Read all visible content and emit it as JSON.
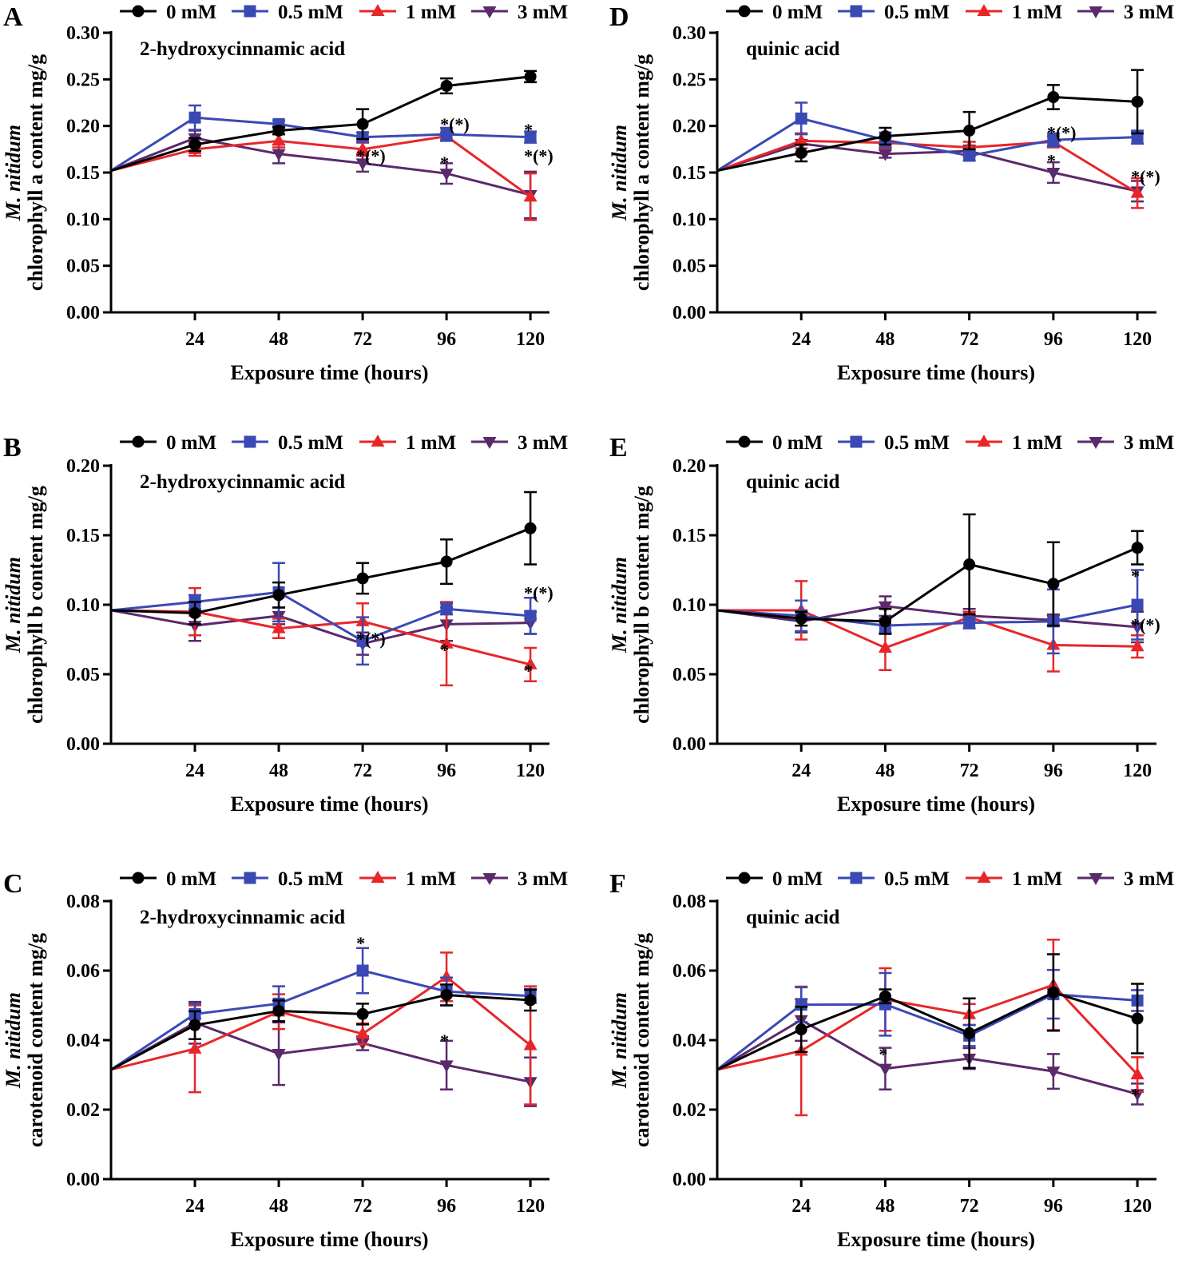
{
  "legend_labels": [
    "0 mM",
    "0.5 mM",
    "1 mM",
    "3 mM"
  ],
  "series_colors": [
    "#000000",
    "#3a49b4",
    "#e8262a",
    "#5b2a6b"
  ],
  "series_markers": [
    "circle",
    "square",
    "triangle-up",
    "triangle-down"
  ],
  "chart_data": [
    {
      "panel": "A",
      "type": "line",
      "title": "2-hydroxycinnamic acid",
      "ylabel_species": "M. nitidum",
      "ylabel": "chlorophyll a content mg/g",
      "xlabel": "Exposure time (hours)",
      "x": [
        0,
        24,
        48,
        72,
        96,
        120
      ],
      "xticks": [
        "24",
        "48",
        "72",
        "96",
        "120"
      ],
      "ylim": [
        0,
        0.3
      ],
      "yticks": [
        "0.00",
        "0.05",
        "0.10",
        "0.15",
        "0.20",
        "0.25",
        "0.30"
      ],
      "series": [
        {
          "name": "0 mM",
          "values": [
            0.152,
            0.18,
            0.195,
            0.202,
            0.243,
            0.253
          ],
          "err": [
            0,
            0.007,
            0.004,
            0.016,
            0.008,
            0.006
          ]
        },
        {
          "name": "0.5 mM",
          "values": [
            0.152,
            0.209,
            0.202,
            0.188,
            0.191,
            0.188
          ],
          "err": [
            0,
            0.013,
            0.004,
            0.005,
            0.007,
            0.006
          ]
        },
        {
          "name": "1 mM",
          "values": [
            0.152,
            0.175,
            0.184,
            0.175,
            0.189,
            0.124
          ],
          "err": [
            0,
            0.007,
            0.007,
            0.007,
            0.004,
            0.025
          ]
        },
        {
          "name": "3 mM",
          "values": [
            0.152,
            0.187,
            0.17,
            0.16,
            0.149,
            0.126
          ],
          "err": [
            0,
            0.008,
            0.01,
            0.009,
            0.011,
            0.025
          ]
        }
      ],
      "annotations": [
        {
          "text": "*(*)",
          "x": 96,
          "y": 0.204
        },
        {
          "text": "*",
          "x": 120,
          "y": 0.198
        },
        {
          "text": "*(*)",
          "x": 72,
          "y": 0.17
        },
        {
          "text": "*",
          "x": 96,
          "y": 0.163
        },
        {
          "text": "*(*)",
          "x": 120,
          "y": 0.17
        }
      ]
    },
    {
      "panel": "B",
      "type": "line",
      "title": "2-hydroxycinnamic acid",
      "ylabel_species": "M. nitidum",
      "ylabel": "chlorophyll b content mg/g",
      "xlabel": "Exposure time (hours)",
      "x": [
        0,
        24,
        48,
        72,
        96,
        120
      ],
      "xticks": [
        "24",
        "48",
        "72",
        "96",
        "120"
      ],
      "ylim": [
        0,
        0.2
      ],
      "yticks": [
        "0.00",
        "0.05",
        "0.10",
        "0.15",
        "0.20"
      ],
      "series": [
        {
          "name": "0 mM",
          "values": [
            0.096,
            0.094,
            0.107,
            0.119,
            0.131,
            0.155
          ],
          "err": [
            0,
            0.008,
            0.009,
            0.011,
            0.016,
            0.026
          ]
        },
        {
          "name": "0.5 mM",
          "values": [
            0.096,
            0.102,
            0.109,
            0.074,
            0.097,
            0.092
          ],
          "err": [
            0,
            0.005,
            0.021,
            0.017,
            0.004,
            0.013
          ]
        },
        {
          "name": "1 mM",
          "values": [
            0.096,
            0.095,
            0.083,
            0.088,
            0.072,
            0.057
          ],
          "err": [
            0,
            0.017,
            0.007,
            0.013,
            0.03,
            0.012
          ]
        },
        {
          "name": "3 mM",
          "values": [
            0.096,
            0.085,
            0.092,
            0.072,
            0.086,
            0.087
          ],
          "err": [
            0,
            0.011,
            0.006,
            0.008,
            0.012,
            0.008
          ]
        }
      ],
      "annotations": [
        {
          "text": "*(*)",
          "x": 120,
          "y": 0.11
        },
        {
          "text": "*(*)",
          "x": 72,
          "y": 0.077
        },
        {
          "text": "*",
          "x": 96,
          "y": 0.069
        },
        {
          "text": "*",
          "x": 120,
          "y": 0.054
        }
      ]
    },
    {
      "panel": "C",
      "type": "line",
      "title": "2-hydroxycinnamic acid",
      "ylabel_species": "M. nitidum",
      "ylabel": "carotenoid  content mg/g",
      "xlabel": "Exposure time (hours)",
      "x": [
        0,
        24,
        48,
        72,
        96,
        120
      ],
      "xticks": [
        "24",
        "48",
        "72",
        "96",
        "120"
      ],
      "ylim": [
        0,
        0.08
      ],
      "yticks": [
        "0.00",
        "0.02",
        "0.04",
        "0.06",
        "0.08"
      ],
      "series": [
        {
          "name": "0 mM",
          "values": [
            0.0315,
            0.0443,
            0.0484,
            0.0475,
            0.053,
            0.0515
          ],
          "err": [
            0,
            0.004,
            0.003,
            0.003,
            0.003,
            0.003
          ]
        },
        {
          "name": "0.5 mM",
          "values": [
            0.0315,
            0.0475,
            0.0505,
            0.06,
            0.054,
            0.0527
          ],
          "err": [
            0,
            0.003,
            0.005,
            0.0065,
            0.004,
            0.002
          ]
        },
        {
          "name": "1 mM",
          "values": [
            0.0315,
            0.0375,
            0.0482,
            0.0418,
            0.0582,
            0.0385
          ],
          "err": [
            0,
            0.0125,
            0.005,
            0.003,
            0.007,
            0.017
          ]
        },
        {
          "name": "3 mM",
          "values": [
            0.0315,
            0.045,
            0.0361,
            0.0391,
            0.0328,
            0.028
          ],
          "err": [
            0,
            0.006,
            0.009,
            0.002,
            0.007,
            0.007
          ]
        }
      ],
      "annotations": [
        {
          "text": "*",
          "x": 72,
          "y": 0.0685
        },
        {
          "text": "*",
          "x": 96,
          "y": 0.0405
        }
      ]
    },
    {
      "panel": "D",
      "type": "line",
      "title": "quinic acid",
      "ylabel_species": "M. nitidum",
      "ylabel": "chlorophyll a content mg/g",
      "xlabel": "Exposure time (hours)",
      "x": [
        0,
        24,
        48,
        72,
        96,
        120
      ],
      "xticks": [
        "24",
        "48",
        "72",
        "96",
        "120"
      ],
      "ylim": [
        0,
        0.3
      ],
      "yticks": [
        "0.00",
        "0.05",
        "0.10",
        "0.15",
        "0.20",
        "0.25",
        "0.30"
      ],
      "series": [
        {
          "name": "0 mM",
          "values": [
            0.152,
            0.171,
            0.189,
            0.195,
            0.231,
            0.226
          ],
          "err": [
            0,
            0.009,
            0.009,
            0.02,
            0.013,
            0.034
          ]
        },
        {
          "name": "0.5 mM",
          "values": [
            0.152,
            0.208,
            0.185,
            0.168,
            0.185,
            0.188
          ],
          "err": [
            0,
            0.017,
            0.008,
            0.005,
            0.007,
            0.007
          ]
        },
        {
          "name": "1 mM",
          "values": [
            0.152,
            0.184,
            0.182,
            0.177,
            0.183,
            0.128
          ],
          "err": [
            0,
            0.008,
            0.006,
            0.006,
            0.006,
            0.016
          ]
        },
        {
          "name": "3 mM",
          "values": [
            0.152,
            0.181,
            0.17,
            0.173,
            0.15,
            0.13
          ],
          "err": [
            0,
            0.011,
            0.004,
            0.006,
            0.011,
            0.011
          ]
        }
      ],
      "annotations": [
        {
          "text": "*(*)",
          "x": 96,
          "y": 0.195
        },
        {
          "text": "*",
          "x": 96,
          "y": 0.165
        },
        {
          "text": "*(*)",
          "x": 120,
          "y": 0.148
        }
      ]
    },
    {
      "panel": "E",
      "type": "line",
      "title": "quinic acid",
      "ylabel_species": "M. nitidum",
      "ylabel": "chlorophyll b content mg/g",
      "xlabel": "Exposure time (hours)",
      "x": [
        0,
        24,
        48,
        72,
        96,
        120
      ],
      "xticks": [
        "24",
        "48",
        "72",
        "96",
        "120"
      ],
      "ylim": [
        0,
        0.2
      ],
      "yticks": [
        "0.00",
        "0.05",
        "0.10",
        "0.15",
        "0.20"
      ],
      "series": [
        {
          "name": "0 mM",
          "values": [
            0.096,
            0.09,
            0.088,
            0.129,
            0.115,
            0.141
          ],
          "err": [
            0,
            0.005,
            0.009,
            0.036,
            0.03,
            0.012
          ]
        },
        {
          "name": "0.5 mM",
          "values": [
            0.096,
            0.092,
            0.085,
            0.087,
            0.088,
            0.1
          ],
          "err": [
            0,
            0.011,
            0.005,
            0.004,
            0.023,
            0.025
          ]
        },
        {
          "name": "1 mM",
          "values": [
            0.096,
            0.096,
            0.069,
            0.091,
            0.071,
            0.07
          ],
          "err": [
            0,
            0.021,
            0.016,
            0.004,
            0.019,
            0.008
          ]
        },
        {
          "name": "3 mM",
          "values": [
            0.096,
            0.088,
            0.099,
            0.092,
            0.089,
            0.084
          ],
          "err": [
            0,
            0.008,
            0.007,
            0.005,
            0.004,
            0.011
          ]
        }
      ],
      "annotations": [
        {
          "text": "*",
          "x": 120,
          "y": 0.122
        },
        {
          "text": "*(*)",
          "x": 120,
          "y": 0.087
        }
      ]
    },
    {
      "panel": "F",
      "type": "line",
      "title": "quinic acid",
      "ylabel_species": "M. nitidum",
      "ylabel": "carotenoid  content mg/g",
      "xlabel": "Exposure time (hours)",
      "x": [
        0,
        24,
        48,
        72,
        96,
        120
      ],
      "xticks": [
        "24",
        "48",
        "72",
        "96",
        "120"
      ],
      "ylim": [
        0,
        0.08
      ],
      "yticks": [
        "0.00",
        "0.02",
        "0.04",
        "0.06",
        "0.08"
      ],
      "series": [
        {
          "name": "0 mM",
          "values": [
            0.0315,
            0.0431,
            0.0526,
            0.042,
            0.0537,
            0.0462
          ],
          "err": [
            0,
            0.0065,
            0.002,
            0.01,
            0.011,
            0.01
          ]
        },
        {
          "name": "0.5 mM",
          "values": [
            0.0315,
            0.0502,
            0.0503,
            0.0413,
            0.0532,
            0.0514
          ],
          "err": [
            0,
            0.005,
            0.009,
            0.003,
            0.007,
            0.003
          ]
        },
        {
          "name": "1 mM",
          "values": [
            0.0315,
            0.0369,
            0.0517,
            0.0474,
            0.0559,
            0.0301
          ],
          "err": [
            0,
            0.0185,
            0.009,
            0.003,
            0.013,
            0.005
          ]
        },
        {
          "name": "3 mM",
          "values": [
            0.0315,
            0.0458,
            0.0318,
            0.0347,
            0.031,
            0.0245
          ],
          "err": [
            0,
            0.006,
            0.006,
            0.003,
            0.005,
            0.003
          ]
        }
      ],
      "annotations": [
        {
          "text": "*",
          "x": 48,
          "y": 0.0365
        },
        {
          "text": "*",
          "x": 120,
          "y": 0.025
        }
      ]
    }
  ]
}
